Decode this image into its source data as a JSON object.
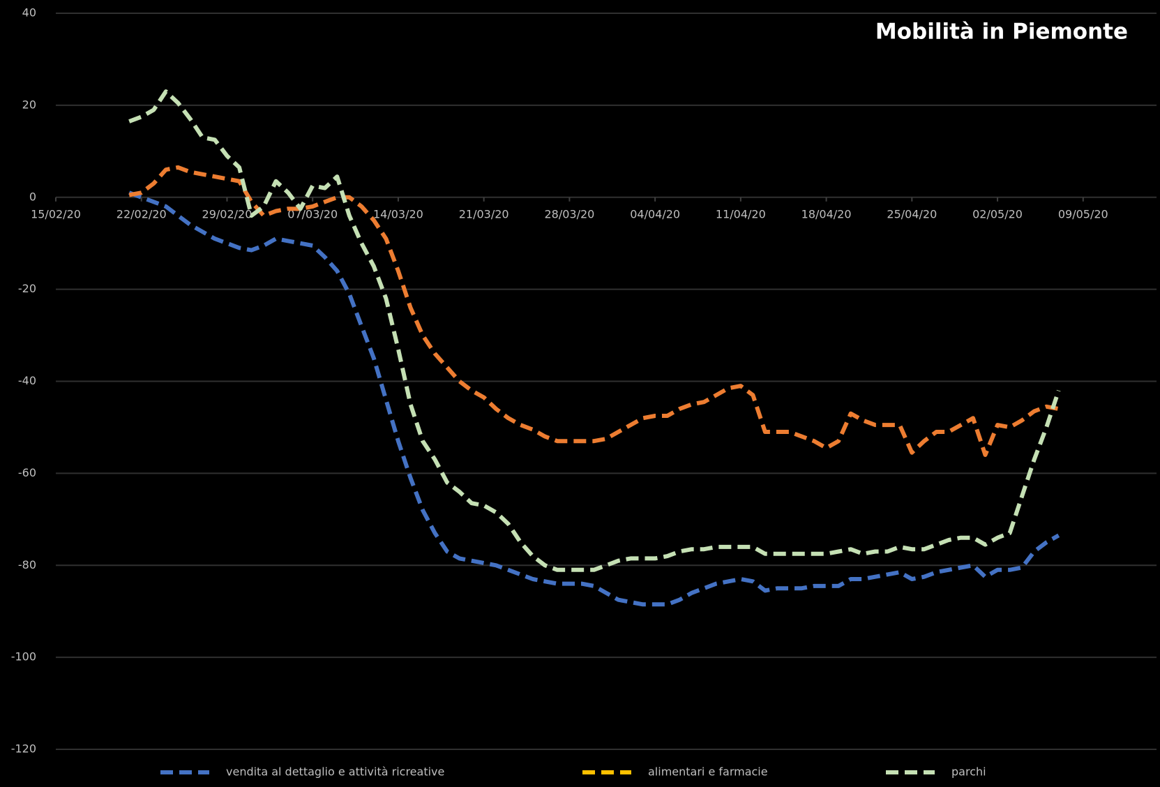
{
  "chart_data": {
    "type": "line",
    "title": "Mobilità in Piemonte",
    "x": [
      "21/02/20",
      "22/02/20",
      "23/02/20",
      "24/02/20",
      "25/02/20",
      "26/02/20",
      "27/02/20",
      "28/02/20",
      "29/02/20",
      "01/03/20",
      "02/03/20",
      "03/03/20",
      "04/03/20",
      "05/03/20",
      "06/03/20",
      "07/03/20",
      "08/03/20",
      "09/03/20",
      "10/03/20",
      "11/03/20",
      "12/03/20",
      "13/03/20",
      "14/03/20",
      "15/03/20",
      "16/03/20",
      "17/03/20",
      "18/03/20",
      "19/03/20",
      "20/03/20",
      "21/03/20",
      "22/03/20",
      "23/03/20",
      "24/03/20",
      "25/03/20",
      "26/03/20",
      "27/03/20",
      "28/03/20",
      "29/03/20",
      "30/03/20",
      "31/03/20",
      "01/04/20",
      "02/04/20",
      "03/04/20",
      "04/04/20",
      "05/04/20",
      "06/04/20",
      "07/04/20",
      "08/04/20",
      "09/04/20",
      "10/04/20",
      "11/04/20",
      "12/04/20",
      "13/04/20",
      "14/04/20",
      "15/04/20",
      "16/04/20",
      "17/04/20",
      "18/04/20",
      "19/04/20",
      "20/04/20",
      "21/04/20",
      "22/04/20",
      "23/04/20",
      "24/04/20",
      "25/04/20",
      "26/04/20",
      "27/04/20",
      "28/04/20",
      "29/04/20",
      "30/04/20",
      "01/05/20",
      "02/05/20",
      "03/05/20",
      "04/05/20",
      "05/05/20",
      "06/05/20",
      "07/05/20"
    ],
    "series": [
      {
        "name": "vendita al dettaglio e attività ricreative",
        "color": "#4472c4",
        "values": [
          1,
          0,
          -1,
          -2,
          -4,
          -6,
          -7.5,
          -9,
          -10,
          -11,
          -11.5,
          -10.5,
          -9,
          -9.5,
          -10,
          -10.5,
          -13,
          -16,
          -21,
          -28,
          -35,
          -44,
          -53,
          -61,
          -68,
          -73,
          -77,
          -78.5,
          -79,
          -79.5,
          -80,
          -81,
          -82,
          -83,
          -83.5,
          -84,
          -84,
          -84,
          -84.5,
          -86,
          -87.5,
          -88,
          -88.5,
          -88.5,
          -88.5,
          -87.5,
          -86,
          -85,
          -84,
          -83.5,
          -83,
          -83.5,
          -85.5,
          -85,
          -85,
          -85,
          -84.5,
          -84.5,
          -84.5,
          -83,
          -83,
          -82.5,
          -82,
          -81.5,
          -83,
          -82.5,
          -81.5,
          -81,
          -80.5,
          -80,
          -82.5,
          -81,
          -81,
          -80.5,
          -77,
          -75,
          -73.5
        ]
      },
      {
        "name": "alimentari e farmacie",
        "color": "#ed7d31",
        "legend_color": "#ffc000",
        "values": [
          0.5,
          1,
          3,
          6,
          6.5,
          5.5,
          5,
          4.5,
          4,
          3.5,
          -1,
          -4,
          -3,
          -2.5,
          -2.5,
          -2,
          -1,
          0,
          0,
          -2,
          -5,
          -9,
          -16,
          -24,
          -30,
          -34,
          -37,
          -40,
          -42,
          -43.5,
          -46,
          -48,
          -49.5,
          -50.5,
          -52,
          -53,
          -53,
          -53,
          -53,
          -52.5,
          -51,
          -49.5,
          -48,
          -47.5,
          -47.5,
          -46,
          -45,
          -44.5,
          -43,
          -41.5,
          -41,
          -43,
          -51,
          -51,
          -51,
          -52,
          -53,
          -54.5,
          -53,
          -47,
          -48.5,
          -49.5,
          -49.5,
          -49.5,
          -55.5,
          -53,
          -51,
          -51,
          -49.5,
          -48,
          -56,
          -49.5,
          -50,
          -48.5,
          -46.5,
          -45.5,
          -46
        ]
      },
      {
        "name": "parchi",
        "color": "#c5e0b4",
        "values": [
          16.5,
          17.5,
          19,
          23,
          20.5,
          17,
          13,
          12.5,
          9,
          6.5,
          -4,
          -2,
          3.5,
          1,
          -2.5,
          2.5,
          2,
          4.5,
          -4,
          -10,
          -15,
          -22,
          -33,
          -45,
          -53,
          -57,
          -62,
          -64,
          -66.5,
          -67,
          -68.5,
          -71,
          -75,
          -78,
          -80,
          -81,
          -81,
          -81,
          -81,
          -80,
          -79,
          -78.5,
          -78.5,
          -78.5,
          -78,
          -77,
          -76.5,
          -76.5,
          -76,
          -76,
          -76,
          -76,
          -77.5,
          -77.5,
          -77.5,
          -77.5,
          -77.5,
          -77.5,
          -77,
          -76.5,
          -77.5,
          -77,
          -77,
          -76,
          -76.5,
          -76.5,
          -75.5,
          -74.5,
          -74,
          -74,
          -75.5,
          -74,
          -73,
          -65,
          -57,
          -50,
          -42
        ]
      }
    ],
    "xlim": [
      "15/02/20",
      "15/05/20"
    ],
    "xticks": [
      "15/02/20",
      "22/02/20",
      "29/02/20",
      "07/03/20",
      "14/03/20",
      "21/03/20",
      "28/03/20",
      "04/04/20",
      "11/04/20",
      "18/04/20",
      "25/04/20",
      "02/05/20",
      "09/05/20"
    ],
    "ylim": [
      -120,
      40
    ],
    "yticks": [
      -120,
      -100,
      -80,
      -60,
      -40,
      -20,
      0,
      20,
      40
    ],
    "grid": true,
    "legend": "bottom"
  }
}
